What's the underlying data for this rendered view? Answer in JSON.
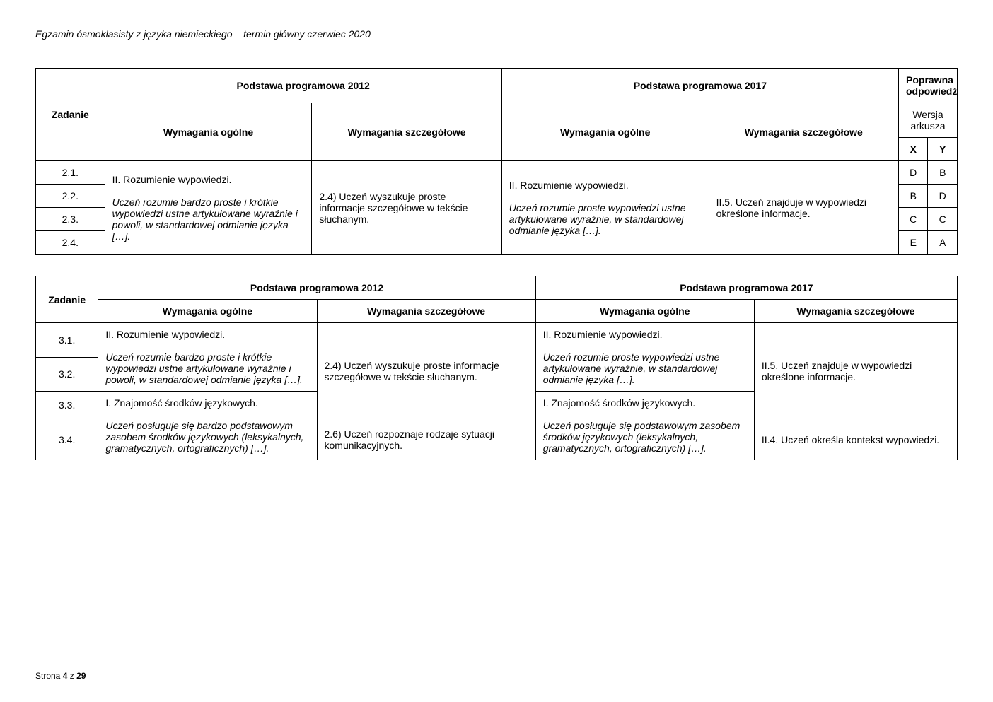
{
  "page_header": "Egzamin ósmoklasisty z języka niemieckiego – termin główny czerwiec 2020",
  "footer": "Strona 4 z 29",
  "table1": {
    "headers": {
      "zadanie": "Zadanie",
      "pp2012": "Podstawa programowa 2012",
      "pp2017": "Podstawa programowa 2017",
      "poprawna": "Poprawna odpowiedź",
      "wo": "Wymagania ogólne",
      "ws": "Wymagania szczegółowe",
      "wersja": "Wersja arkusza",
      "x": "X",
      "y": "Y"
    },
    "col2_main": "II. Rozumienie wypowiedzi.",
    "col2_sub": "Uczeń rozumie bardzo proste i krótkie wypowiedzi ustne artykułowane wyraźnie i powoli, w standardowej odmianie języka […].",
    "col3_main": "2.4) Uczeń wyszukuje proste informacje szczegółowe w tekście słuchanym.",
    "col4_main": "II. Rozumienie wypowiedzi.",
    "col4_sub": "Uczeń rozumie proste wypowiedzi ustne artykułowane wyraźnie, w standardowej odmianie języka […].",
    "col5_main": "II.5. Uczeń znajduje w wypowiedzi określone informacje.",
    "rows": [
      {
        "zadanie": "2.1.",
        "x": "D",
        "y": "B"
      },
      {
        "zadanie": "2.2.",
        "x": "B",
        "y": "D"
      },
      {
        "zadanie": "2.3.",
        "x": "C",
        "y": "C"
      },
      {
        "zadanie": "2.4.",
        "x": "E",
        "y": "A"
      }
    ]
  },
  "table2": {
    "headers": {
      "zadanie": "Zadanie",
      "pp2012": "Podstawa programowa 2012",
      "pp2017": "Podstawa programowa 2017",
      "wo": "Wymagania ogólne",
      "ws": "Wymagania szczegółowe"
    },
    "r31_wo_main": "II. Rozumienie wypowiedzi.",
    "r31_wo_sub": "Uczeń rozumie bardzo proste i krótkie wypowiedzi ustne artykułowane wyraźnie i powoli, w standardowej odmianie języka […].",
    "r33_wo_main": "I. Znajomość środków językowych.",
    "r34_wo_sub": "Uczeń posługuje się bardzo podstawowym zasobem środków językowych (leksykalnych, gramatycznych, ortograficznych) […].",
    "ws_top": "2.4) Uczeń wyszukuje proste informacje szczegółowe w tekście słuchanym.",
    "ws_34": "2.6) Uczeń rozpoznaje rodzaje sytuacji komunikacyjnych.",
    "r31_2017_wo_main": "II. Rozumienie wypowiedzi.",
    "r31_2017_wo_sub": "Uczeń rozumie proste wypowiedzi ustne artykułowane wyraźnie, w standardowej odmianie języka […].",
    "r33_2017_wo_main": "I. Znajomość środków językowych.",
    "r34_2017_wo_sub": "Uczeń posługuje się podstawowym zasobem środków językowych (leksykalnych, gramatycznych, ortograficznych) […].",
    "ws2017_top": "II.5. Uczeń znajduje w wypowiedzi określone informacje.",
    "ws2017_34": "II.4. Uczeń określa kontekst wypowiedzi.",
    "rows": {
      "r31": "3.1.",
      "r32": "3.2.",
      "r33": "3.3.",
      "r34": "3.4."
    }
  }
}
